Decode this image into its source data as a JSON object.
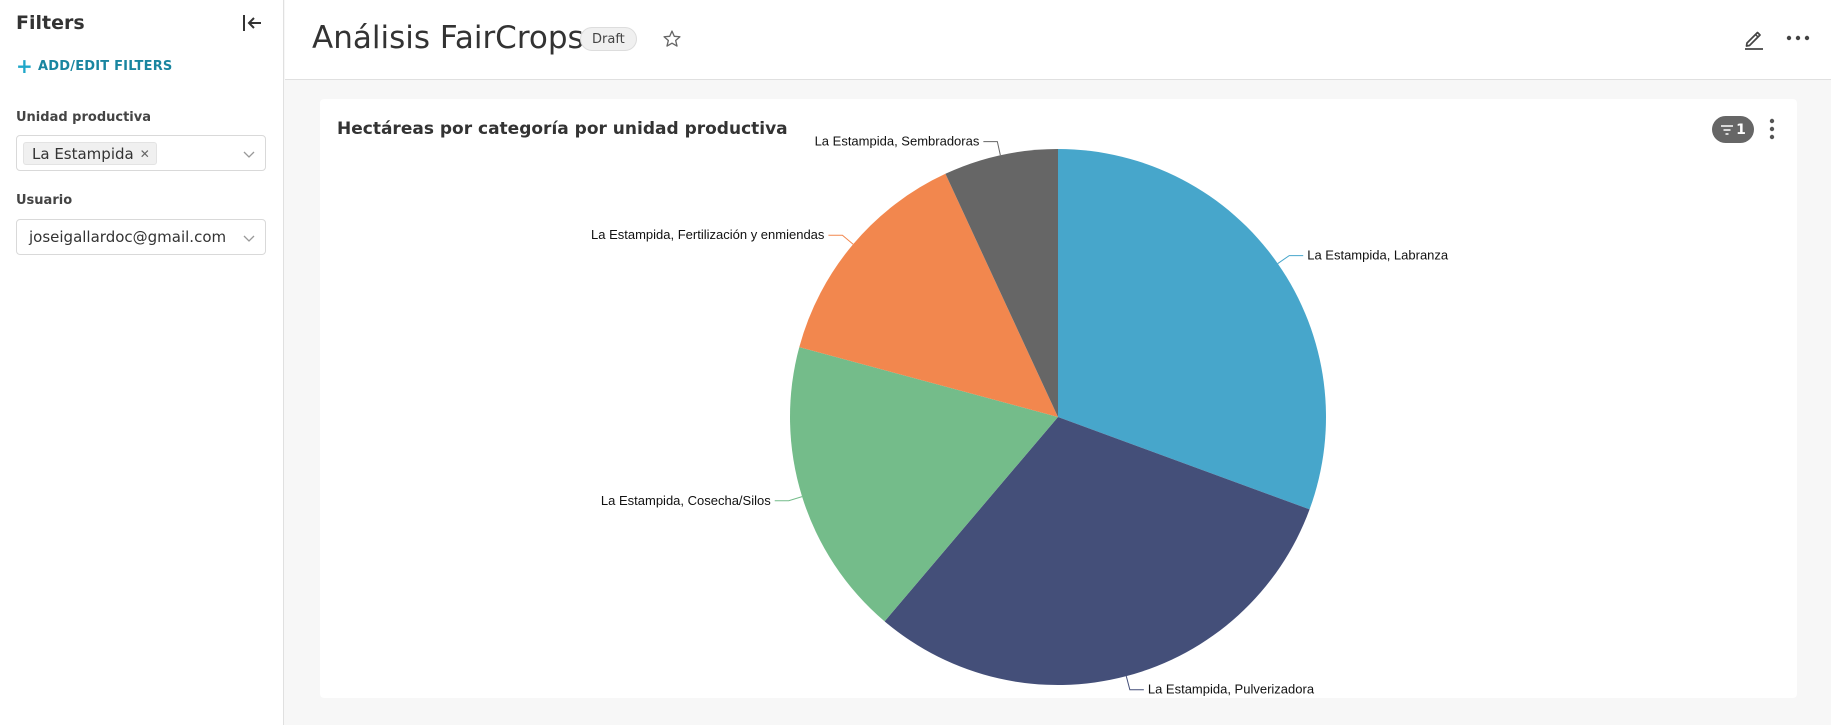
{
  "sidebar": {
    "title": "Filters",
    "add_filters_label": "ADD/EDIT FILTERS",
    "filters": [
      {
        "label": "Unidad productiva",
        "selected_tags": [
          "La Estampida"
        ]
      },
      {
        "label": "Usuario",
        "value": "joseigallardoc@gmail.com"
      }
    ]
  },
  "header": {
    "title": "Análisis FairCrops",
    "badge": "Draft"
  },
  "chart_card": {
    "filter_count": "1"
  },
  "colors": {
    "accent": "#20a7c9",
    "accent_text": "#1985a0"
  },
  "chart_data": {
    "type": "pie",
    "title": "Hectáreas por categoría por unidad productiva",
    "labels_position": "outside",
    "slices": [
      {
        "label": "La Estampida, Labranza",
        "value": 30.6,
        "color": "#47a6cb"
      },
      {
        "label": "La Estampida, Pulverizadora",
        "value": 30.6,
        "color": "#444f79"
      },
      {
        "label": "La Estampida, Cosecha/Silos",
        "value": 18.0,
        "color": "#74bc8a"
      },
      {
        "label": "La Estampida, Fertilización y enmiendas",
        "value": 13.9,
        "color": "#f2874e"
      },
      {
        "label": "La Estampida, Sembradoras",
        "value": 6.9,
        "color": "#666666"
      }
    ]
  }
}
